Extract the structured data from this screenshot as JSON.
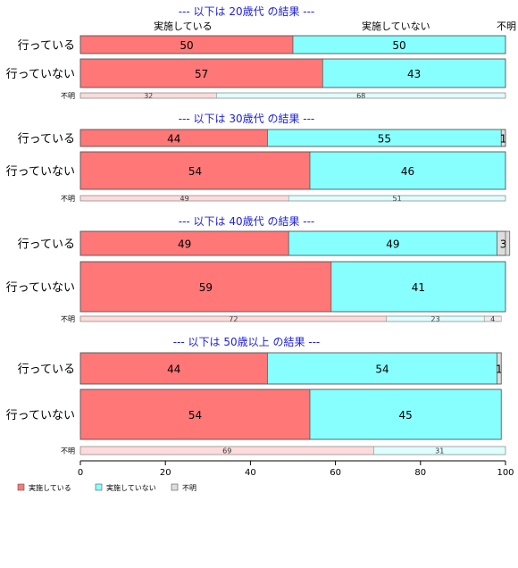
{
  "chart_data": {
    "type": "bar",
    "orientation": "horizontal",
    "stacked": true,
    "xlim": [
      0,
      100
    ],
    "x_ticks": [
      "0",
      "20",
      "40",
      "60",
      "80",
      "100"
    ],
    "series_names": [
      "実施している",
      "実施していない",
      "不明"
    ],
    "colors": [
      "#ff7777",
      "#88ffff",
      "#dddddd"
    ],
    "small_colors": [
      "#ffdada",
      "#ddffff",
      "#eeeeee"
    ],
    "header": [
      "実施している",
      "実施していない",
      "不明"
    ],
    "legend": [
      "実施している",
      "実施していない",
      "不明"
    ],
    "panels": [
      {
        "title": "--- 以下は 20歳代 の結果 ---",
        "rows": [
          {
            "label": "行っている",
            "values": [
              50,
              50,
              0
            ],
            "labels": [
              "50",
              "50",
              ""
            ]
          },
          {
            "label": "行っていない",
            "values": [
              57,
              43,
              0
            ],
            "labels": [
              "57",
              "43",
              ""
            ]
          }
        ],
        "unknown_row": {
          "label": "不明",
          "values": [
            32,
            68,
            0
          ],
          "labels": [
            "32",
            "68",
            ""
          ]
        }
      },
      {
        "title": "--- 以下は 30歳代 の結果 ---",
        "rows": [
          {
            "label": "行っている",
            "values": [
              44,
              55,
              1
            ],
            "labels": [
              "44",
              "55",
              "1"
            ]
          },
          {
            "label": "行っていない",
            "values": [
              54,
              46,
              0
            ],
            "labels": [
              "54",
              "46",
              ""
            ]
          }
        ],
        "unknown_row": {
          "label": "不明",
          "values": [
            49,
            51,
            0
          ],
          "labels": [
            "49",
            "51",
            ""
          ]
        }
      },
      {
        "title": "--- 以下は 40歳代 の結果 ---",
        "rows": [
          {
            "label": "行っている",
            "values": [
              49,
              49,
              3
            ],
            "labels": [
              "49",
              "49",
              "3"
            ]
          },
          {
            "label": "行っていない",
            "values": [
              59,
              41,
              0
            ],
            "labels": [
              "59",
              "41",
              ""
            ]
          }
        ],
        "unknown_row": {
          "label": "不明",
          "values": [
            72,
            23,
            4
          ],
          "labels": [
            "72",
            "23",
            "4"
          ]
        }
      },
      {
        "title": "--- 以下は 50歳以上 の結果 ---",
        "rows": [
          {
            "label": "行っている",
            "values": [
              44,
              54,
              1
            ],
            "labels": [
              "44",
              "54",
              "1"
            ]
          },
          {
            "label": "行っていない",
            "values": [
              54,
              45,
              0
            ],
            "labels": [
              "54",
              "45",
              ""
            ]
          }
        ],
        "unknown_row": {
          "label": "不明",
          "values": [
            69,
            31,
            0
          ],
          "labels": [
            "69",
            "31",
            ""
          ]
        }
      }
    ]
  }
}
